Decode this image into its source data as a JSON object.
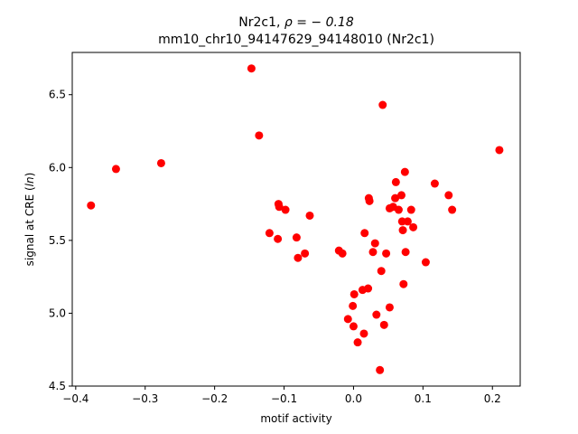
{
  "chart_data": {
    "type": "scatter",
    "title_line1_prefix": "Nr2c1, ",
    "title_line1_math": "ρ = − 0.18",
    "title_line2": "mm10_chr10_94147629_94148010 (Nr2c1)",
    "xlabel": "motif activity",
    "ylabel_prefix": "signal at CRE (",
    "ylabel_math": "ln",
    "ylabel_suffix": ")",
    "xlim": [
      -0.405,
      0.24
    ],
    "ylim": [
      4.5,
      6.79
    ],
    "xticks": [
      -0.4,
      -0.3,
      -0.2,
      -0.1,
      0.0,
      0.1,
      0.2
    ],
    "xtick_labels": [
      "−0.4",
      "−0.3",
      "−0.2",
      "−0.1",
      "0.0",
      "0.1",
      "0.2"
    ],
    "yticks": [
      4.5,
      5.0,
      5.5,
      6.0,
      6.5
    ],
    "ytick_labels": [
      "4.5",
      "5.0",
      "5.5",
      "6.0",
      "6.5"
    ],
    "marker_color": "#ff0000",
    "grid": false,
    "points": [
      {
        "x": -0.378,
        "y": 5.74
      },
      {
        "x": -0.342,
        "y": 5.99
      },
      {
        "x": -0.277,
        "y": 6.03
      },
      {
        "x": -0.147,
        "y": 6.68
      },
      {
        "x": -0.136,
        "y": 6.22
      },
      {
        "x": -0.121,
        "y": 5.55
      },
      {
        "x": -0.109,
        "y": 5.51
      },
      {
        "x": -0.108,
        "y": 5.75
      },
      {
        "x": -0.107,
        "y": 5.73
      },
      {
        "x": -0.098,
        "y": 5.71
      },
      {
        "x": -0.082,
        "y": 5.52
      },
      {
        "x": -0.08,
        "y": 5.38
      },
      {
        "x": -0.07,
        "y": 5.41
      },
      {
        "x": -0.063,
        "y": 5.67
      },
      {
        "x": -0.021,
        "y": 5.43
      },
      {
        "x": -0.016,
        "y": 5.41
      },
      {
        "x": -0.008,
        "y": 4.96
      },
      {
        "x": -0.001,
        "y": 5.05
      },
      {
        "x": 0.0,
        "y": 4.91
      },
      {
        "x": 0.001,
        "y": 5.13
      },
      {
        "x": 0.006,
        "y": 4.8
      },
      {
        "x": 0.013,
        "y": 5.16
      },
      {
        "x": 0.015,
        "y": 4.86
      },
      {
        "x": 0.016,
        "y": 5.55
      },
      {
        "x": 0.021,
        "y": 5.17
      },
      {
        "x": 0.022,
        "y": 5.79
      },
      {
        "x": 0.023,
        "y": 5.77
      },
      {
        "x": 0.028,
        "y": 5.42
      },
      {
        "x": 0.031,
        "y": 5.48
      },
      {
        "x": 0.033,
        "y": 4.99
      },
      {
        "x": 0.038,
        "y": 4.61
      },
      {
        "x": 0.04,
        "y": 5.29
      },
      {
        "x": 0.042,
        "y": 6.43
      },
      {
        "x": 0.044,
        "y": 4.92
      },
      {
        "x": 0.047,
        "y": 5.41
      },
      {
        "x": 0.052,
        "y": 5.72
      },
      {
        "x": 0.052,
        "y": 5.04
      },
      {
        "x": 0.057,
        "y": 5.73
      },
      {
        "x": 0.06,
        "y": 5.79
      },
      {
        "x": 0.061,
        "y": 5.9
      },
      {
        "x": 0.065,
        "y": 5.71
      },
      {
        "x": 0.069,
        "y": 5.81
      },
      {
        "x": 0.07,
        "y": 5.63
      },
      {
        "x": 0.071,
        "y": 5.57
      },
      {
        "x": 0.072,
        "y": 5.2
      },
      {
        "x": 0.074,
        "y": 5.97
      },
      {
        "x": 0.075,
        "y": 5.42
      },
      {
        "x": 0.078,
        "y": 5.63
      },
      {
        "x": 0.083,
        "y": 5.71
      },
      {
        "x": 0.086,
        "y": 5.59
      },
      {
        "x": 0.104,
        "y": 5.35
      },
      {
        "x": 0.117,
        "y": 5.89
      },
      {
        "x": 0.137,
        "y": 5.81
      },
      {
        "x": 0.142,
        "y": 5.71
      },
      {
        "x": 0.21,
        "y": 6.12
      }
    ]
  }
}
